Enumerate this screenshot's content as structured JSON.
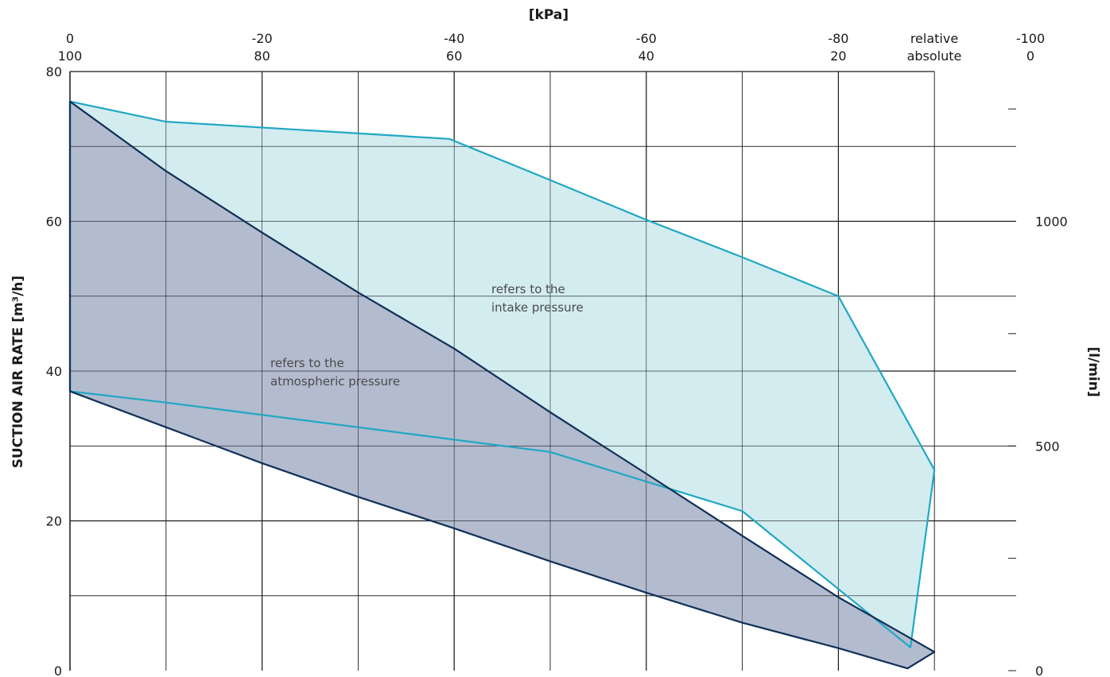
{
  "chart_data": {
    "type": "area",
    "top_axis_title": "[kPa]",
    "ylabel": "SUCTION AIR RATE  [m³/h]",
    "ylabel_right": "[l/min]",
    "top_ticks_relative": [
      "0",
      "-20",
      "-40",
      "-60",
      "-80",
      "-100"
    ],
    "top_ticks_absolute": [
      "100",
      "80",
      "60",
      "40",
      "20",
      "0"
    ],
    "top_tick_values": [
      0,
      -20,
      -40,
      -60,
      -80,
      -100
    ],
    "top_row_labels": {
      "relative": "relative",
      "absolute": "absolute"
    },
    "xlim": [
      0,
      -100
    ],
    "ylim": [
      0,
      80
    ],
    "y_ticks": [
      0,
      20,
      40,
      60,
      80
    ],
    "y_ticks_right": [
      0,
      500,
      1000
    ],
    "y_ticks_right_values_m3h": [
      0,
      30,
      60
    ],
    "grid": true,
    "annotations": {
      "intake": [
        "refers to the",
        "intake pressure"
      ],
      "atmospheric": [
        "refers to the",
        "atmospheric pressure"
      ]
    },
    "colors": {
      "light": "#1fa8c4",
      "light_fill": "#d3ecf0",
      "dark": "#0f3057",
      "dark_fill": "#b3bbcf"
    },
    "series": [
      {
        "band": "atmospheric",
        "upper": [
          [
            0,
            76
          ],
          [
            -10,
            66.7
          ],
          [
            -20,
            58.5
          ],
          [
            -30,
            50.5
          ],
          [
            -40,
            43
          ],
          [
            -50,
            34.5
          ],
          [
            -60,
            26.3
          ],
          [
            -70,
            18
          ],
          [
            -80,
            9.8
          ],
          [
            -90,
            2.5
          ]
        ],
        "lower": [
          [
            0,
            37.3
          ],
          [
            -10,
            32.5
          ],
          [
            -20,
            27.7
          ],
          [
            -30,
            23.2
          ],
          [
            -40,
            19
          ],
          [
            -50,
            14.6
          ],
          [
            -60,
            10.4
          ],
          [
            -70,
            6.4
          ],
          [
            -80,
            3
          ],
          [
            -87.2,
            0.3
          ]
        ]
      },
      {
        "band": "intake",
        "upper": [
          [
            0,
            76
          ],
          [
            -10,
            73.3
          ],
          [
            -39.5,
            71
          ],
          [
            -50,
            65.5
          ],
          [
            -60,
            60.2
          ],
          [
            -70,
            55.2
          ],
          [
            -80,
            50
          ],
          [
            -90,
            26.8
          ]
        ],
        "lower": [
          [
            0,
            37.3
          ],
          [
            -10,
            35.8
          ],
          [
            -50,
            29.2
          ],
          [
            -70,
            21.3
          ],
          [
            -87.5,
            3.1
          ]
        ]
      }
    ]
  }
}
